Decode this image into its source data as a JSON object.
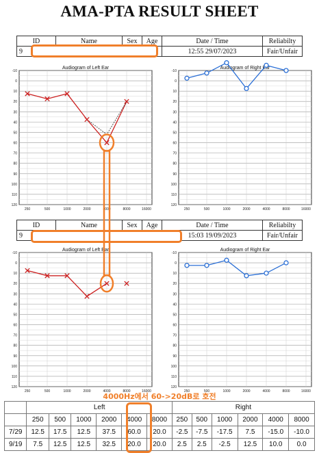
{
  "page_title": "AMA-PTA RESULT SHEET",
  "header_cols": {
    "id": "ID",
    "name": "Name",
    "sex": "Sex",
    "age": "Age",
    "datetime": "Date / Time",
    "reliability": "Reliabilty"
  },
  "sessions": [
    {
      "id_partial": "9",
      "datetime": "12:55 29/07/2023",
      "reliability": "Fair/Unfair"
    },
    {
      "id_partial": "9",
      "datetime": "15:03 19/09/2023",
      "reliability": "Fair/Unfair"
    }
  ],
  "annotation": "4000Hz에서 60->20dB로 호전",
  "colors": {
    "left_ear": "#cc2020",
    "right_ear": "#2a6fd6",
    "highlight": "#f07f2a"
  },
  "chart_data": [
    {
      "type": "line",
      "title": "Audiogram of Left Ear",
      "x": [
        250,
        500,
        1000,
        2000,
        4000,
        8000
      ],
      "x_ticks": [
        "250",
        "500",
        "1000",
        "2000",
        "4000",
        "8000",
        "16000"
      ],
      "y": [
        12.5,
        17.5,
        12.5,
        37.5,
        60.0,
        20.0
      ],
      "y_ticks": [
        "-10",
        "0",
        "10",
        "20",
        "30",
        "40",
        "50",
        "60",
        "70",
        "80",
        "90",
        "100",
        "110",
        "120"
      ],
      "ylim": [
        -10,
        120
      ],
      "marker": "x",
      "series_color": "#cc2020",
      "grid": true,
      "extra_dotted_point": {
        "x": 4000,
        "y": 52
      }
    },
    {
      "type": "line",
      "title": "Audiogram of Right Ear",
      "x": [
        250,
        500,
        1000,
        2000,
        4000,
        8000
      ],
      "x_ticks": [
        "250",
        "500",
        "1000",
        "2000",
        "4000",
        "8000",
        "16000"
      ],
      "y": [
        -2.5,
        -7.5,
        -17.5,
        7.5,
        -15.0,
        -10.0
      ],
      "y_ticks": [
        "-10",
        "0",
        "10",
        "20",
        "30",
        "40",
        "50",
        "60",
        "70",
        "80",
        "90",
        "100",
        "110",
        "120"
      ],
      "ylim": [
        -10,
        120
      ],
      "marker": "o",
      "series_color": "#2a6fd6",
      "grid": true
    },
    {
      "type": "line",
      "title": "Audiogram of Left Ear",
      "x": [
        250,
        500,
        1000,
        2000,
        4000,
        8000
      ],
      "x_ticks": [
        "250",
        "500",
        "1000",
        "2000",
        "4000",
        "8000",
        "16000"
      ],
      "y": [
        7.5,
        12.5,
        12.5,
        32.5,
        20.0,
        20.0
      ],
      "y_ticks": [
        "-10",
        "0",
        "10",
        "20",
        "30",
        "40",
        "50",
        "60",
        "70",
        "80",
        "90",
        "100",
        "110",
        "120"
      ],
      "ylim": [
        -10,
        120
      ],
      "marker": "x",
      "series_color": "#cc2020",
      "grid": true,
      "connect_last": false
    },
    {
      "type": "line",
      "title": "Audiogram of Right Ear",
      "x": [
        250,
        500,
        1000,
        2000,
        4000,
        8000
      ],
      "x_ticks": [
        "250",
        "500",
        "1000",
        "2000",
        "4000",
        "8000",
        "16000"
      ],
      "y": [
        2.5,
        2.5,
        -2.5,
        12.5,
        10.0,
        0.0
      ],
      "y_ticks": [
        "-10",
        "0",
        "10",
        "20",
        "30",
        "40",
        "50",
        "60",
        "70",
        "80",
        "90",
        "100",
        "110",
        "120"
      ],
      "ylim": [
        -10,
        120
      ],
      "marker": "o",
      "series_color": "#2a6fd6",
      "grid": true
    },
    {
      "type": "table",
      "group_headers": [
        "Left",
        "Right"
      ],
      "columns": [
        "250",
        "500",
        "1000",
        "2000",
        "4000",
        "8000",
        "250",
        "500",
        "1000",
        "2000",
        "4000",
        "8000"
      ],
      "rows": [
        {
          "label": "7/29",
          "values": [
            "12.5",
            "17.5",
            "12.5",
            "37.5",
            "60.0",
            "20.0",
            "-2.5",
            "-7.5",
            "-17.5",
            "7.5",
            "-15.0",
            "-10.0"
          ]
        },
        {
          "label": "9/19",
          "values": [
            "7.5",
            "12.5",
            "12.5",
            "32.5",
            "20.0",
            "20.0",
            "2.5",
            "2.5",
            "-2.5",
            "12.5",
            "10.0",
            "0.0"
          ]
        }
      ]
    }
  ]
}
